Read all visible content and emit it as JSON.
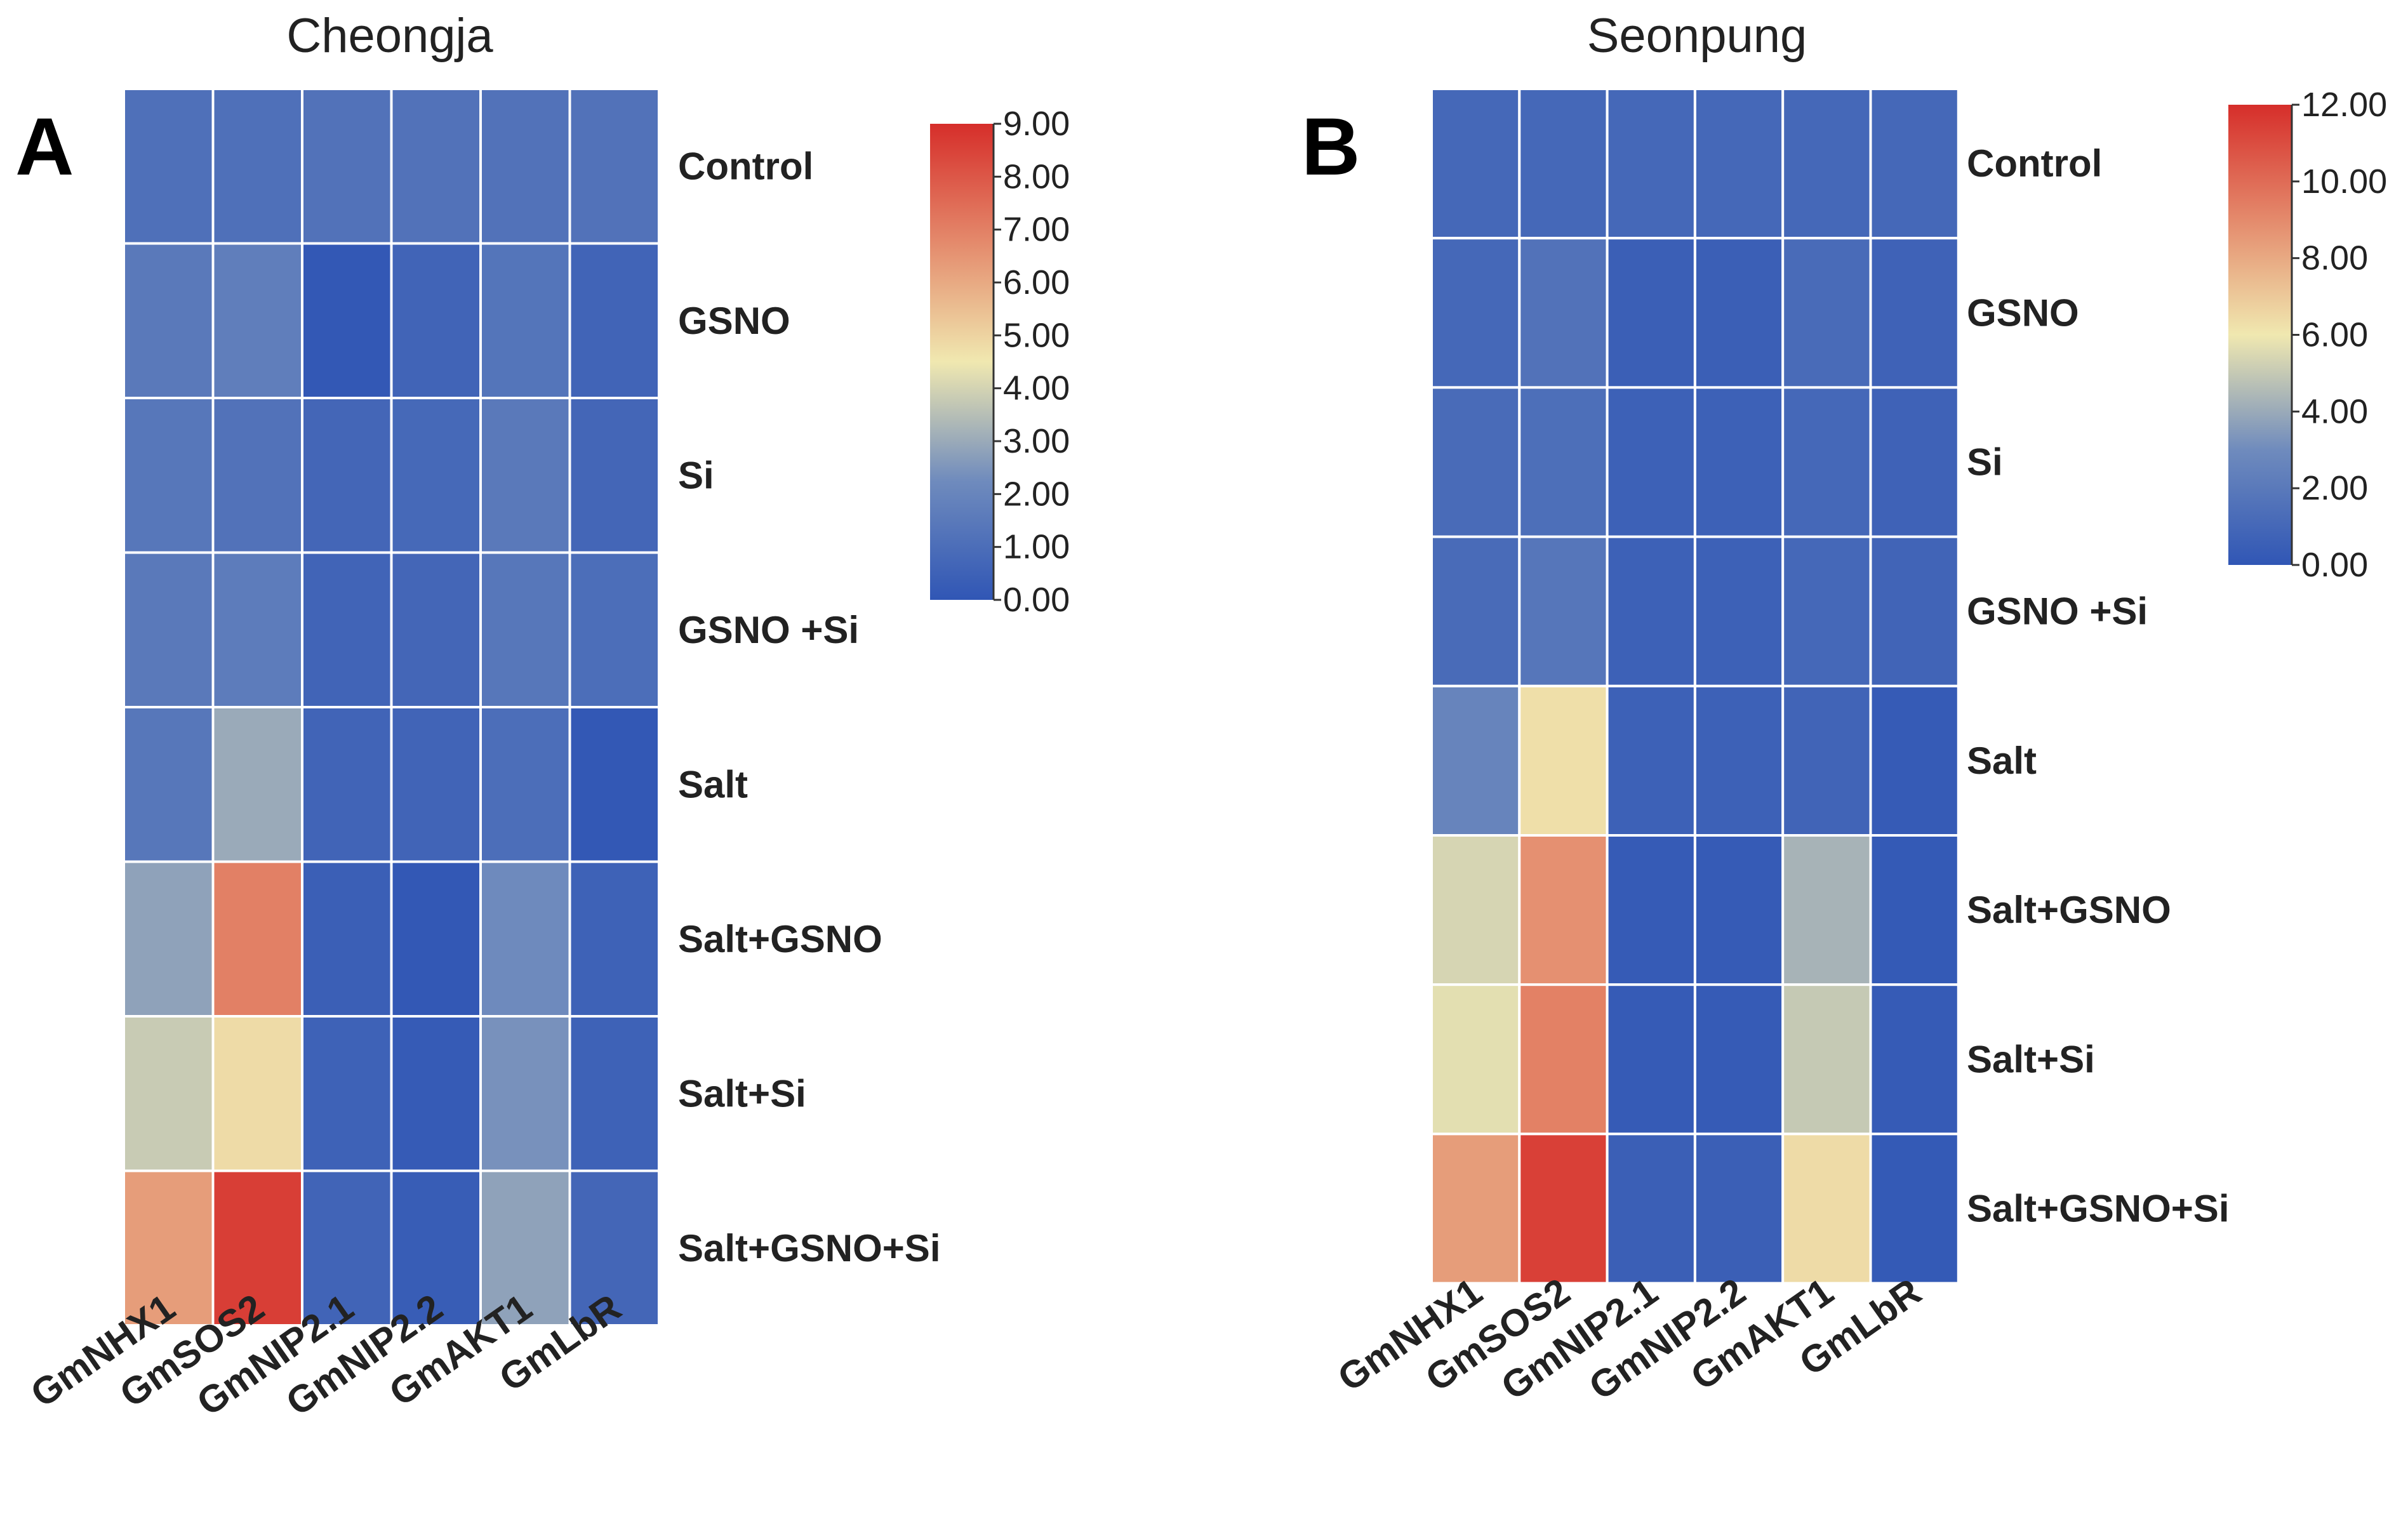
{
  "figure": {
    "colorscale": [
      "#3056b5",
      "#6f8bbd",
      "#f0e8b0",
      "#e48a6c",
      "#d62e2a"
    ]
  },
  "chart_data": [
    {
      "type": "heatmap",
      "panel_letter": "A",
      "title": "Cheongja",
      "rows": [
        "Control",
        "GSNO",
        "Si",
        "GSNO +Si",
        "Salt",
        "Salt+GSNO",
        "Salt+Si",
        "Salt+GSNO+Si"
      ],
      "columns": [
        "GmNHX1",
        "GmSOS2",
        "GmNIP2.1",
        "GmNIP2.2",
        "GmAKT1",
        "GmLbR"
      ],
      "values": [
        [
          1.1,
          1.1,
          1.2,
          1.2,
          1.2,
          1.2
        ],
        [
          1.5,
          1.7,
          0.1,
          0.6,
          1.3,
          0.6
        ],
        [
          1.4,
          1.2,
          0.7,
          0.8,
          1.5,
          0.7
        ],
        [
          1.5,
          1.6,
          0.6,
          0.7,
          1.4,
          1.0
        ],
        [
          1.4,
          3.0,
          0.6,
          0.6,
          1.0,
          0.1
        ],
        [
          2.8,
          7.0,
          0.4,
          0.1,
          2.2,
          0.5
        ],
        [
          3.8,
          4.8,
          0.5,
          0.2,
          2.4,
          0.5
        ],
        [
          6.3,
          8.6,
          0.6,
          0.3,
          2.8,
          0.7
        ]
      ],
      "colorbar": {
        "min": 0,
        "max": 9,
        "ticks": [
          "0.00",
          "1.00",
          "2.00",
          "3.00",
          "4.00",
          "5.00",
          "6.00",
          "7.00",
          "8.00",
          "9.00"
        ]
      }
    },
    {
      "type": "heatmap",
      "panel_letter": "B",
      "title": "Seonpung",
      "rows": [
        "Control",
        "GSNO",
        "Si",
        "GSNO +Si",
        "Salt",
        "Salt+GSNO",
        "Salt+Si",
        "Salt+GSNO+Si"
      ],
      "columns": [
        "GmNHX1",
        "GmSOS2",
        "GmNIP2.1",
        "GmNIP2.2",
        "GmAKT1",
        "GmLbR"
      ],
      "values": [
        [
          1.0,
          1.0,
          1.0,
          1.0,
          1.0,
          1.0
        ],
        [
          1.0,
          1.6,
          0.5,
          0.5,
          1.2,
          0.7
        ],
        [
          1.2,
          1.4,
          0.6,
          0.6,
          1.0,
          0.7
        ],
        [
          1.2,
          1.8,
          0.6,
          0.6,
          1.0,
          0.8
        ],
        [
          2.6,
          6.3,
          0.6,
          0.6,
          0.8,
          0.3
        ],
        [
          5.4,
          8.8,
          0.3,
          0.3,
          4.3,
          0.2
        ],
        [
          5.7,
          9.3,
          0.3,
          0.3,
          5.0,
          0.3
        ],
        [
          8.4,
          11.4,
          0.5,
          0.5,
          6.4,
          0.2
        ]
      ],
      "colorbar": {
        "min": 0,
        "max": 12,
        "ticks": [
          "0.00",
          "2.00",
          "4.00",
          "6.00",
          "8.00",
          "10.00",
          "12.00"
        ]
      }
    }
  ]
}
